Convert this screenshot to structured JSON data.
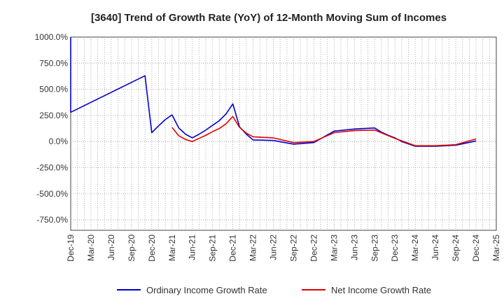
{
  "chart_data": {
    "type": "line",
    "title": "[3640]  Trend of Growth Rate (YoY) of 12-Month Moving Sum of Incomes",
    "xlabel": "",
    "ylabel": "",
    "ylim": [
      -850,
      1000
    ],
    "y_ticks": [
      1000,
      750,
      500,
      250,
      0,
      -250,
      -500,
      -750
    ],
    "y_tick_labels": [
      "1000.0%",
      "750.0%",
      "500.0%",
      "250.0%",
      "0.0%",
      "-250.0%",
      "-500.0%",
      "-750.0%"
    ],
    "x_tick_labels": [
      "Dec-19",
      "Mar-20",
      "Jun-20",
      "Sep-20",
      "Dec-20",
      "Mar-21",
      "Jun-21",
      "Sep-21",
      "Dec-21",
      "Mar-22",
      "Jun-22",
      "Sep-22",
      "Dec-22",
      "Mar-23",
      "Jun-23",
      "Sep-23",
      "Dec-23",
      "Mar-24",
      "Jun-24",
      "Sep-24",
      "Dec-24",
      "Mar-25"
    ],
    "grid": true,
    "legend_position": "bottom",
    "series": [
      {
        "name": "Ordinary Income Growth Rate",
        "color": "#0000cc",
        "points": [
          [
            "Dec-19",
            1000
          ],
          [
            "Dec-19",
            280
          ],
          [
            "Nov-20",
            630
          ],
          [
            "Dec-20",
            85
          ],
          [
            "Jan-21",
            150
          ],
          [
            "Feb-21",
            210
          ],
          [
            "Mar-21",
            255
          ],
          [
            "Apr-21",
            130
          ],
          [
            "May-21",
            70
          ],
          [
            "Jun-21",
            35
          ],
          [
            "Jul-21",
            70
          ],
          [
            "Aug-21",
            110
          ],
          [
            "Sep-21",
            155
          ],
          [
            "Oct-21",
            200
          ],
          [
            "Nov-21",
            265
          ],
          [
            "Dec-21",
            360
          ],
          [
            "Jan-22",
            140
          ],
          [
            "Feb-22",
            70
          ],
          [
            "Mar-22",
            15
          ],
          [
            "Jun-22",
            10
          ],
          [
            "Sep-22",
            -25
          ],
          [
            "Dec-22",
            -10
          ],
          [
            "Mar-23",
            100
          ],
          [
            "Jun-23",
            120
          ],
          [
            "Sep-23",
            130
          ],
          [
            "Oct-23",
            90
          ],
          [
            "Nov-23",
            60
          ],
          [
            "Dec-23",
            35
          ],
          [
            "Jan-24",
            0
          ],
          [
            "Mar-24",
            -45
          ],
          [
            "Jun-24",
            -45
          ],
          [
            "Sep-24",
            -35
          ],
          [
            "Dec-24",
            5
          ]
        ]
      },
      {
        "name": "Net Income Growth Rate",
        "color": "#e00000",
        "points": [
          [
            "Mar-21",
            135
          ],
          [
            "Apr-21",
            55
          ],
          [
            "May-21",
            20
          ],
          [
            "Jun-21",
            0
          ],
          [
            "Jul-21",
            30
          ],
          [
            "Aug-21",
            60
          ],
          [
            "Sep-21",
            95
          ],
          [
            "Oct-21",
            125
          ],
          [
            "Nov-21",
            170
          ],
          [
            "Dec-21",
            240
          ],
          [
            "Jan-22",
            135
          ],
          [
            "Feb-22",
            80
          ],
          [
            "Mar-22",
            45
          ],
          [
            "Jun-22",
            35
          ],
          [
            "Sep-22",
            -10
          ],
          [
            "Dec-22",
            0
          ],
          [
            "Mar-23",
            85
          ],
          [
            "Jun-23",
            105
          ],
          [
            "Sep-23",
            110
          ],
          [
            "Dec-23",
            30
          ],
          [
            "Mar-24",
            -40
          ],
          [
            "Jun-24",
            -40
          ],
          [
            "Sep-24",
            -30
          ],
          [
            "Dec-24",
            25
          ]
        ]
      }
    ]
  }
}
